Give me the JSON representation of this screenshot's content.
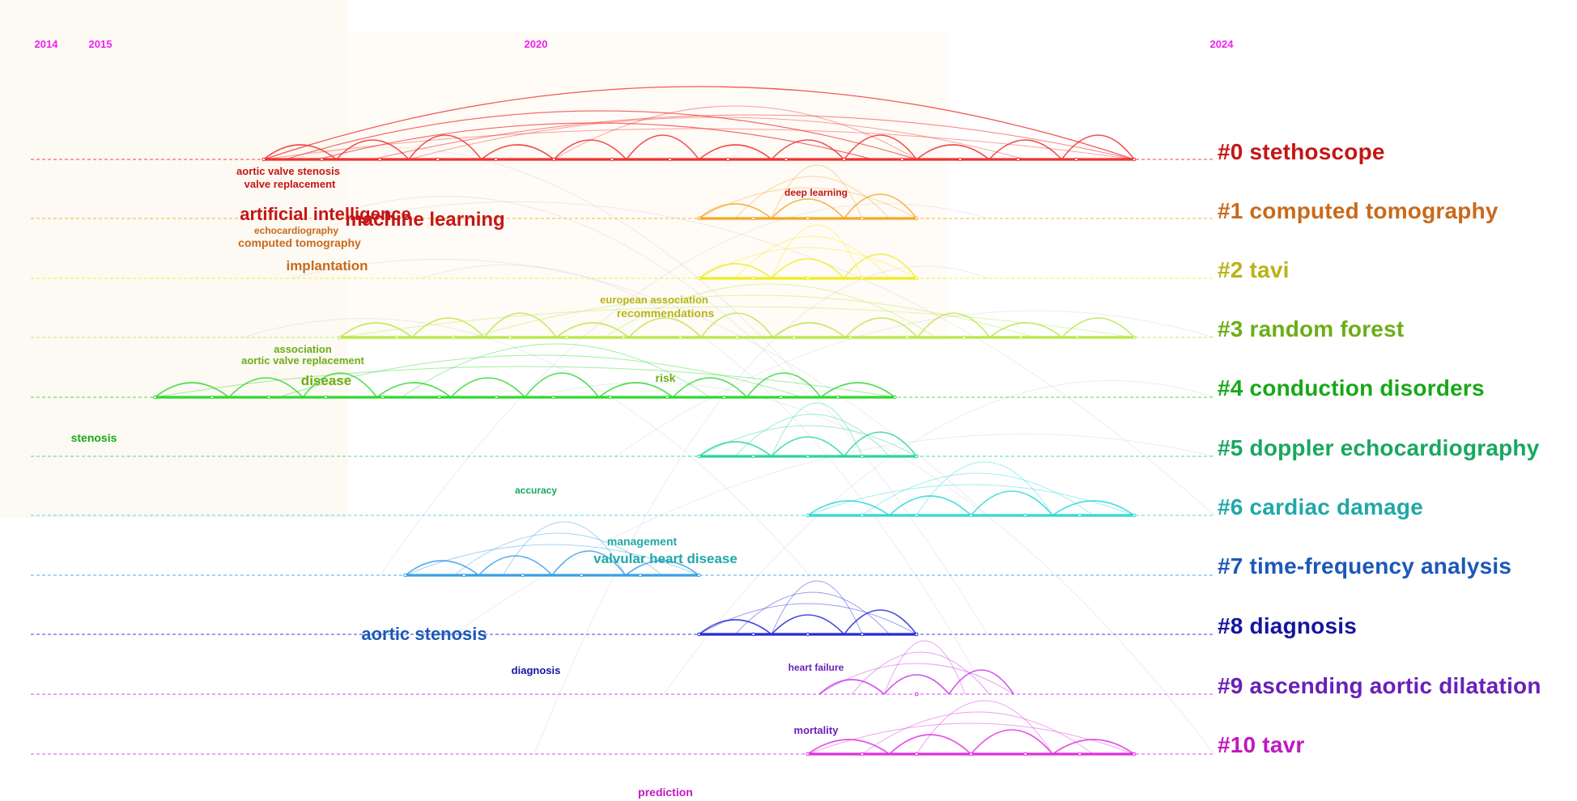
{
  "years": [
    {
      "label": "2014",
      "value": 2014
    },
    {
      "label": "2015",
      "value": 2015
    },
    {
      "label": "2020",
      "value": 2020
    },
    {
      "label": "2024",
      "value": 2024
    }
  ],
  "clusters": [
    {
      "id": 0,
      "label": "#0 stethoscope",
      "color": "#c41616",
      "line": "#f03030",
      "start": 2016.0,
      "end": 2024.0
    },
    {
      "id": 1,
      "label": "#1 computed tomography",
      "color": "#c86a1c",
      "line": "#f2a82a",
      "start": 2020.0,
      "end": 2022.0
    },
    {
      "id": 2,
      "label": "#2 tavi",
      "color": "#b8b418",
      "line": "#eeee20",
      "start": 2020.0,
      "end": 2022.0
    },
    {
      "id": 3,
      "label": "#3 random forest",
      "color": "#6cae18",
      "line": "#b8e848",
      "start": 2016.7,
      "end": 2024.0
    },
    {
      "id": 4,
      "label": "#4 conduction disorders",
      "color": "#18a818",
      "line": "#30d830",
      "start": 2015.0,
      "end": 2021.8
    },
    {
      "id": 5,
      "label": "#5 doppler echocardiography",
      "color": "#18a860",
      "line": "#28d898",
      "start": 2020.0,
      "end": 2022.0
    },
    {
      "id": 6,
      "label": "#6 cardiac damage",
      "color": "#20a8a8",
      "line": "#30d8d8",
      "start": 2021.0,
      "end": 2024.0
    },
    {
      "id": 7,
      "label": "#7 time-frequency analysis",
      "color": "#1c58b8",
      "line": "#3aa0e8",
      "start": 2017.3,
      "end": 2020.0
    },
    {
      "id": 8,
      "label": "#8 diagnosis",
      "color": "#1414a0",
      "line": "#2828d8",
      "start": 2020.0,
      "end": 2022.0
    },
    {
      "id": 9,
      "label": "#9 ascending aortic dilatation",
      "color": "#6820b8",
      "line": "#cc33ee",
      "start": 2022.0,
      "end": 2022.0
    },
    {
      "id": 10,
      "label": "#10 tavr",
      "color": "#c018c0",
      "line": "#e030e0",
      "start": 2021.0,
      "end": 2024.0
    }
  ],
  "keywords": [
    {
      "text": "aortic valve stenosis",
      "cluster": 0,
      "size": "small"
    },
    {
      "text": "valve replacement",
      "cluster": 0,
      "size": "small"
    },
    {
      "text": "deep learning",
      "cluster": 0,
      "size": "small"
    },
    {
      "text": "artificial intelligence",
      "cluster": 0,
      "size": "large"
    },
    {
      "text": "machine learning",
      "cluster": 0,
      "size": "large"
    },
    {
      "text": "echocardiography",
      "cluster": 1,
      "size": "small"
    },
    {
      "text": "computed tomography",
      "cluster": 1,
      "size": "small"
    },
    {
      "text": "implantation",
      "cluster": 1,
      "size": "medium"
    },
    {
      "text": "european association",
      "cluster": 2,
      "size": "small"
    },
    {
      "text": "recommendations",
      "cluster": 2,
      "size": "small"
    },
    {
      "text": "association",
      "cluster": 3,
      "size": "small"
    },
    {
      "text": "aortic valve replacement",
      "cluster": 3,
      "size": "small"
    },
    {
      "text": "disease",
      "cluster": 3,
      "size": "medium"
    },
    {
      "text": "risk",
      "cluster": 3,
      "size": "small"
    },
    {
      "text": "stenosis",
      "cluster": 4,
      "size": "small"
    },
    {
      "text": "accuracy",
      "cluster": 5,
      "size": "tiny"
    },
    {
      "text": "management",
      "cluster": 6,
      "size": "small"
    },
    {
      "text": "valvular heart disease",
      "cluster": 6,
      "size": "medium"
    },
    {
      "text": "aortic stenosis",
      "cluster": 7,
      "size": "large"
    },
    {
      "text": "diagnosis",
      "cluster": 8,
      "size": "small"
    },
    {
      "text": "heart failure",
      "cluster": 9,
      "size": "tiny"
    },
    {
      "text": "mortality",
      "cluster": 10,
      "size": "small"
    },
    {
      "text": "prediction",
      "cluster": 10,
      "size": "small"
    }
  ]
}
